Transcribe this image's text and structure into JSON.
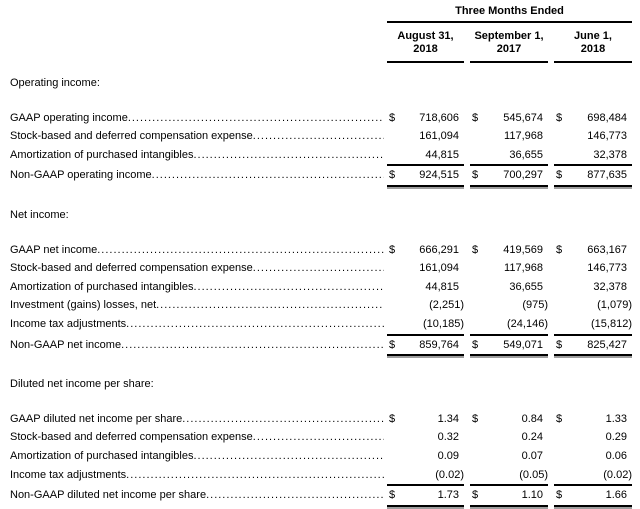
{
  "table": {
    "currency_symbol": "$",
    "span_header": "Three Months Ended",
    "columns": [
      {
        "date_line1": "August 31,",
        "date_line2": "2018"
      },
      {
        "date_line1": "September 1,",
        "date_line2": "2017"
      },
      {
        "date_line1": "June 1,",
        "date_line2": "2018"
      }
    ],
    "sections": [
      {
        "title": "Operating income:",
        "rows": [
          {
            "label": "GAAP operating income",
            "dollar": true,
            "total": false,
            "values": [
              "718,606",
              "545,674",
              "698,484"
            ]
          },
          {
            "label": "Stock-based and deferred compensation expense",
            "dollar": false,
            "total": false,
            "values": [
              "161,094",
              "117,968",
              "146,773"
            ]
          },
          {
            "label": "Amortization of purchased intangibles",
            "dollar": false,
            "total": false,
            "values": [
              "44,815",
              "36,655",
              "32,378"
            ]
          },
          {
            "label": "Non-GAAP operating income",
            "dollar": true,
            "total": true,
            "values": [
              "924,515",
              "700,297",
              "877,635"
            ]
          }
        ]
      },
      {
        "title": "Net income:",
        "rows": [
          {
            "label": "GAAP net income",
            "dollar": true,
            "total": false,
            "values": [
              "666,291",
              "419,569",
              "663,167"
            ]
          },
          {
            "label": "Stock-based and deferred compensation expense",
            "dollar": false,
            "total": false,
            "values": [
              "161,094",
              "117,968",
              "146,773"
            ]
          },
          {
            "label": "Amortization of purchased intangibles",
            "dollar": false,
            "total": false,
            "values": [
              "44,815",
              "36,655",
              "32,378"
            ]
          },
          {
            "label": "Investment (gains) losses, net",
            "dollar": false,
            "total": false,
            "values": [
              "(2,251)",
              "(975)",
              "(1,079)"
            ]
          },
          {
            "label": "Income tax adjustments",
            "dollar": false,
            "total": false,
            "values": [
              "(10,185)",
              "(24,146)",
              "(15,812)"
            ]
          },
          {
            "label": "Non-GAAP net income",
            "dollar": true,
            "total": true,
            "values": [
              "859,764",
              "549,071",
              "825,427"
            ]
          }
        ]
      },
      {
        "title": "Diluted net income per share:",
        "rows": [
          {
            "label": "GAAP diluted net income per share",
            "dollar": true,
            "total": false,
            "values": [
              "1.34",
              "0.84",
              "1.33"
            ]
          },
          {
            "label": "Stock-based and deferred compensation expense",
            "dollar": false,
            "total": false,
            "values": [
              "0.32",
              "0.24",
              "0.29"
            ]
          },
          {
            "label": "Amortization of purchased intangibles",
            "dollar": false,
            "total": false,
            "values": [
              "0.09",
              "0.07",
              "0.06"
            ]
          },
          {
            "label": "Income tax adjustments",
            "dollar": false,
            "total": false,
            "values": [
              "(0.02)",
              "(0.05)",
              "(0.02)"
            ]
          },
          {
            "label": "Non-GAAP diluted net income per share",
            "dollar": true,
            "total": true,
            "values": [
              "1.73",
              "1.10",
              "1.66"
            ]
          }
        ]
      }
    ]
  }
}
